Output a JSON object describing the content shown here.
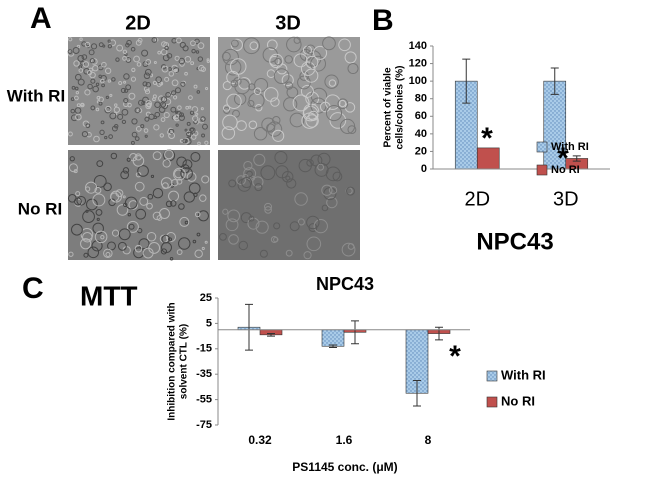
{
  "panel_labels": [
    "A",
    "B",
    "C"
  ],
  "method_label": "MTT",
  "images": {
    "columns": [
      "2D",
      "3D"
    ],
    "rows": [
      "With RI",
      "No RI"
    ]
  },
  "chart_data": [
    {
      "type": "bar",
      "title": "NPC43",
      "ylabel": [
        "Percent of viable",
        "cells/colonies (%)"
      ],
      "categories": [
        "2D",
        "3D"
      ],
      "series": [
        {
          "name": "With RI",
          "color": "#a9cbe8",
          "pattern": "dots",
          "values": [
            100,
            100
          ],
          "errors": [
            25,
            15
          ]
        },
        {
          "name": "No RI",
          "color": "#c0504d",
          "values": [
            24,
            12
          ],
          "errors": [
            null,
            3
          ]
        }
      ],
      "ylim": [
        0,
        140
      ],
      "yticks": [
        0,
        20,
        40,
        60,
        80,
        100,
        120,
        140
      ],
      "annotations": [
        "*",
        "*"
      ]
    },
    {
      "type": "bar",
      "title": "NPC43",
      "ylabel": [
        "Inhibition compared with",
        "solvent CTL (%)"
      ],
      "xlabel": "PS1145 conc. (μM)",
      "categories": [
        "0.32",
        "1.6",
        "8"
      ],
      "series": [
        {
          "name": "With RI",
          "color": "#a9cbe8",
          "pattern": "dots",
          "values": [
            2,
            -13,
            -50
          ],
          "errors": [
            18,
            1,
            10
          ]
        },
        {
          "name": "No RI",
          "color": "#c0504d",
          "values": [
            -4,
            -2,
            -3
          ],
          "errors": [
            1,
            9,
            5
          ]
        }
      ],
      "ylim": [
        -75,
        25
      ],
      "yticks": [
        25,
        5,
        -15,
        -35,
        -55,
        -75
      ],
      "annotations": [
        "*"
      ]
    }
  ]
}
